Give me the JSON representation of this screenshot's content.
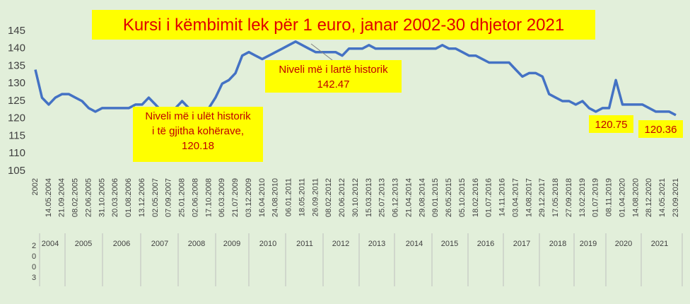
{
  "chart_data": {
    "type": "line",
    "title": "Kursi i këmbimit lek për 1 euro, janar 2002-30 dhjetor 2021",
    "categories": [
      "2002",
      null,
      "14.05.2004",
      null,
      "21.09.2004",
      null,
      "08.02.2005",
      null,
      "22.06.2005",
      null,
      "31.10.2005",
      null,
      "20.03.2006",
      null,
      "01.08.2006",
      null,
      "13.12.2006",
      null,
      "02.05.2007",
      null,
      "07.09.2007",
      null,
      "25.01.2008",
      null,
      "02.06.2008",
      null,
      "17.10.2008",
      null,
      "06.03.2009",
      null,
      "21.07.2009",
      null,
      "03.12.2009",
      null,
      "16.04.2010",
      null,
      "24.08.2010",
      null,
      "06.01.2011",
      null,
      "18.05.2011",
      null,
      "26.09.2011",
      null,
      "08.02.2012",
      null,
      "20.06.2012",
      null,
      "30.10.2012",
      null,
      "15.03.2013",
      null,
      "25.07.2013",
      null,
      "06.12.2013",
      null,
      "21.04.2014",
      null,
      "29.08.2014",
      null,
      "09.01.2015",
      null,
      "26.05.2015",
      null,
      "05.10.2015",
      null,
      "18.02.2016",
      null,
      "01.07.2016",
      null,
      "14.11.2016",
      null,
      "03.04.2017",
      null,
      "14.08.2017",
      null,
      "29.12.2017",
      null,
      "17.05.2018",
      null,
      "27.09.2018",
      null,
      "13.02.2019",
      null,
      "01.07.2019",
      null,
      "08.11.2019",
      null,
      "01.04.2020",
      null,
      "14.08.2020",
      null,
      "28.12.2020",
      null,
      "14.05.2021",
      null,
      "23.09.2021"
    ],
    "year_labels": [
      "2003",
      "2004",
      "2005",
      "2006",
      "2007",
      "2008",
      "2009",
      "2010",
      "2011",
      "2012",
      "2013",
      "2014",
      "2015",
      "2016",
      "2017",
      "2018",
      "2019",
      "2020",
      "2021"
    ],
    "series": [
      {
        "name": "Kursi",
        "color": "#4472c4",
        "values": [
          134,
          126,
          124,
          126,
          127,
          127,
          126,
          125,
          123,
          122,
          123,
          123,
          123,
          123,
          123,
          124,
          124,
          126,
          124,
          122,
          123,
          123,
          125,
          123,
          122,
          122,
          123,
          126,
          130,
          131,
          133,
          138,
          139,
          138,
          137,
          138,
          139,
          140,
          141,
          142,
          141,
          140,
          139,
          139,
          139,
          139,
          138,
          140,
          140,
          140,
          141,
          140,
          140,
          140,
          140,
          140,
          140,
          140,
          140,
          140,
          140,
          141,
          140,
          140,
          139,
          138,
          138,
          137,
          136,
          136,
          136,
          136,
          134,
          132,
          133,
          133,
          132,
          127,
          126,
          125,
          125,
          124,
          125,
          123,
          122,
          123,
          123,
          131,
          124,
          124,
          124,
          124,
          123,
          122,
          122,
          122,
          121
        ]
      }
    ],
    "ylim": [
      105,
      145
    ],
    "yticks": [
      105,
      110,
      115,
      120,
      125,
      130,
      135,
      140,
      145
    ],
    "grid": false,
    "annotations": [
      {
        "lines": [
          "Niveli më i lartë historik",
          "142.47"
        ]
      },
      {
        "lines": [
          "Niveli më i ulët historik",
          "i të gjitha kohërave,",
          "120.18"
        ]
      },
      {
        "lines": [
          "120.75"
        ]
      },
      {
        "lines": [
          "120.36"
        ]
      }
    ]
  }
}
